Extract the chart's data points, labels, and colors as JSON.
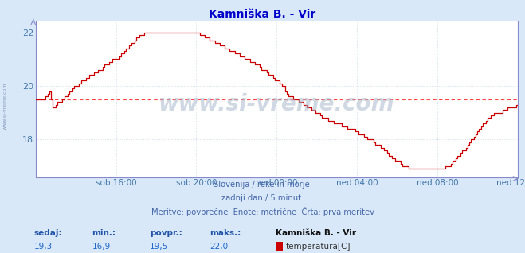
{
  "title": "Kamniška B. - Vir",
  "bg_color": "#d8e8f8",
  "plot_bg_color": "#ffffff",
  "grid_color": "#c8d8e8",
  "line_color": "#cc0000",
  "avg_line_color": "#ff4444",
  "avg_value": 19.5,
  "ylim_min": 16.6,
  "ylim_max": 22.4,
  "yticks": [
    18,
    20,
    22
  ],
  "tick_color": "#4477aa",
  "title_color": "#0000cc",
  "text_color": "#4466aa",
  "footer_line1": "Slovenija / reke in morje.",
  "footer_line2": "zadnji dan / 5 minut.",
  "footer_line3": "Meritve: povprečne  Enote: metrične  Črta: prva meritev",
  "label_sedaj": "sedaj:",
  "label_min": "min.:",
  "label_povpr": "povpr.:",
  "label_maks": "maks.:",
  "val_sedaj": "19,3",
  "val_min": "16,9",
  "val_povpr": "19,5",
  "val_maks": "22,0",
  "legend_title": "Kamniška B. - Vir",
  "legend_label": "temperatura[C]",
  "legend_color": "#cc0000",
  "watermark": "www.si-vreme.com",
  "xtick_labels": [
    "sob 16:00",
    "sob 20:00",
    "ned 00:00",
    "ned 04:00",
    "ned 08:00",
    "ned 12:00"
  ],
  "num_points": 289,
  "tick_positions": [
    48,
    96,
    144,
    192,
    240,
    288
  ],
  "axis_spine_color": "#8888cc",
  "left_watermark": "www.si-vreme.com"
}
